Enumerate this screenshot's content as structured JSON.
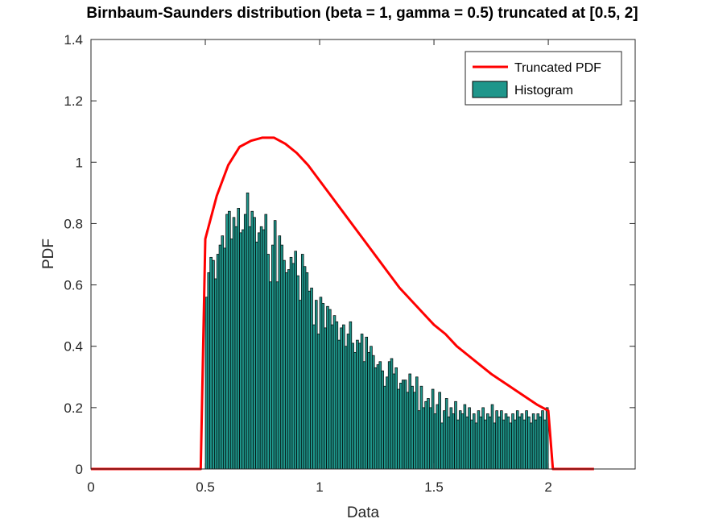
{
  "chart_data": {
    "type": "bar",
    "title": "Birnbaum-Saunders distribution (beta = 1, gamma = 0.5) truncated at [0.5, 2]",
    "xlabel": "Data",
    "ylabel": "PDF",
    "xlim": [
      0,
      2.38
    ],
    "ylim": [
      0,
      1.4
    ],
    "xticks": [
      0,
      0.5,
      1,
      1.5,
      2
    ],
    "xtick_labels": [
      "0",
      "0.5",
      "1",
      "1.5",
      "2"
    ],
    "yticks": [
      0,
      0.2,
      0.4,
      0.6,
      0.8,
      1,
      1.2,
      1.4
    ],
    "ytick_labels": [
      "0",
      "0.2",
      "0.4",
      "0.6",
      "0.8",
      "1",
      "1.2",
      "1.4"
    ],
    "grid": false,
    "legend_position": "top-right",
    "legend": [
      {
        "label": "Truncated PDF",
        "kind": "line",
        "color": "#ff0000"
      },
      {
        "label": "Histogram",
        "kind": "patch",
        "color": "#1f968b"
      }
    ],
    "series": [
      {
        "name": "Truncated PDF",
        "type": "line",
        "color": "#ff0000",
        "x": [
          0,
          0.48,
          0.5,
          0.5,
          0.55,
          0.6,
          0.65,
          0.7,
          0.75,
          0.8,
          0.85,
          0.9,
          0.95,
          1.0,
          1.05,
          1.1,
          1.15,
          1.2,
          1.25,
          1.3,
          1.35,
          1.4,
          1.45,
          1.5,
          1.55,
          1.6,
          1.65,
          1.7,
          1.75,
          1.8,
          1.85,
          1.9,
          1.95,
          2.0,
          2.0,
          2.02,
          2.2
        ],
        "y": [
          0,
          0,
          0.75,
          0.75,
          0.89,
          0.99,
          1.05,
          1.07,
          1.08,
          1.08,
          1.06,
          1.03,
          0.99,
          0.94,
          0.89,
          0.84,
          0.79,
          0.74,
          0.69,
          0.64,
          0.59,
          0.55,
          0.51,
          0.47,
          0.44,
          0.4,
          0.37,
          0.34,
          0.31,
          0.285,
          0.26,
          0.235,
          0.21,
          0.19,
          0.19,
          0,
          0
        ]
      },
      {
        "name": "Histogram",
        "type": "bar",
        "color": "#1f968b",
        "edge_color": "#000000",
        "bin_start": 0.5,
        "bin_width": 0.01,
        "values": [
          0.56,
          0.64,
          0.69,
          0.68,
          0.62,
          0.7,
          0.73,
          0.76,
          0.72,
          0.83,
          0.84,
          0.75,
          0.82,
          0.79,
          0.85,
          0.77,
          0.78,
          0.83,
          0.9,
          0.79,
          0.84,
          0.82,
          0.74,
          0.77,
          0.79,
          0.78,
          0.83,
          0.7,
          0.61,
          0.73,
          0.81,
          0.61,
          0.76,
          0.73,
          0.68,
          0.64,
          0.65,
          0.69,
          0.67,
          0.71,
          0.63,
          0.55,
          0.7,
          0.66,
          0.64,
          0.58,
          0.59,
          0.47,
          0.55,
          0.44,
          0.56,
          0.54,
          0.46,
          0.53,
          0.52,
          0.47,
          0.5,
          0.48,
          0.42,
          0.46,
          0.47,
          0.4,
          0.44,
          0.48,
          0.41,
          0.38,
          0.42,
          0.41,
          0.44,
          0.35,
          0.43,
          0.38,
          0.4,
          0.37,
          0.33,
          0.34,
          0.35,
          0.32,
          0.27,
          0.3,
          0.35,
          0.36,
          0.31,
          0.33,
          0.26,
          0.28,
          0.29,
          0.29,
          0.25,
          0.31,
          0.27,
          0.25,
          0.3,
          0.19,
          0.27,
          0.2,
          0.22,
          0.23,
          0.2,
          0.26,
          0.18,
          0.21,
          0.25,
          0.15,
          0.19,
          0.23,
          0.17,
          0.2,
          0.18,
          0.22,
          0.16,
          0.19,
          0.18,
          0.21,
          0.17,
          0.2,
          0.16,
          0.18,
          0.15,
          0.19,
          0.17,
          0.2,
          0.16,
          0.18,
          0.17,
          0.21,
          0.15,
          0.19,
          0.17,
          0.19,
          0.16,
          0.18,
          0.17,
          0.15,
          0.18,
          0.16,
          0.19,
          0.17,
          0.18,
          0.16,
          0.19,
          0.17,
          0.15,
          0.18,
          0.16,
          0.18,
          0.17,
          0.19,
          0.16,
          0.2
        ]
      }
    ]
  }
}
